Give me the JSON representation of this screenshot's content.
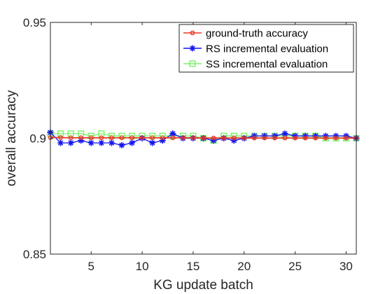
{
  "chart_data": {
    "type": "line",
    "title": "",
    "xlabel": "KG update batch",
    "ylabel": "overall accuracy",
    "xlim": [
      1,
      31
    ],
    "ylim": [
      0.85,
      0.95
    ],
    "x_ticks": [
      5,
      10,
      15,
      20,
      25,
      30
    ],
    "y_ticks": [
      0.85,
      0.9,
      0.95
    ],
    "y_tick_labels": [
      "0.85",
      "0.9",
      "0.95"
    ],
    "grid": false,
    "legend_position": "top-right",
    "x": [
      1,
      2,
      3,
      4,
      5,
      6,
      7,
      8,
      9,
      10,
      11,
      12,
      13,
      14,
      15,
      16,
      17,
      18,
      19,
      20,
      21,
      22,
      23,
      24,
      25,
      26,
      27,
      28,
      29,
      30,
      31
    ],
    "series": [
      {
        "name": "ground-truth accuracy",
        "color": "#e8392a",
        "marker": "circle",
        "values": [
          0.9003,
          0.9003,
          0.9002,
          0.9002,
          0.9002,
          0.9002,
          0.9002,
          0.9002,
          0.9002,
          0.9002,
          0.9002,
          0.9002,
          0.9002,
          0.9002,
          0.9002,
          0.9001,
          0.9001,
          0.9001,
          0.9001,
          0.9001,
          0.9001,
          0.9001,
          0.9001,
          0.9001,
          0.9001,
          0.9001,
          0.9001,
          0.9001,
          0.9001,
          0.9001,
          0.9001
        ]
      },
      {
        "name": "RS incremental evaluation",
        "color": "#1414f0",
        "marker": "asterisk",
        "values": [
          0.9025,
          0.898,
          0.898,
          0.899,
          0.898,
          0.898,
          0.898,
          0.897,
          0.898,
          0.9,
          0.898,
          0.899,
          0.902,
          0.9,
          0.9,
          0.9,
          0.899,
          0.9,
          0.899,
          0.9,
          0.901,
          0.901,
          0.901,
          0.902,
          0.901,
          0.901,
          0.901,
          0.901,
          0.901,
          0.901,
          0.9
        ]
      },
      {
        "name": "SS incremental evaluation",
        "color": "#7ef26a",
        "marker": "square",
        "values": [
          0.902,
          0.902,
          0.902,
          0.902,
          0.901,
          0.902,
          0.901,
          0.901,
          0.901,
          0.901,
          0.901,
          0.901,
          0.901,
          0.901,
          0.901,
          0.9,
          0.899,
          0.901,
          0.901,
          0.901,
          0.901,
          0.901,
          0.901,
          0.901,
          0.901,
          0.901,
          0.901,
          0.9,
          0.9,
          0.9,
          0.9
        ]
      }
    ]
  }
}
